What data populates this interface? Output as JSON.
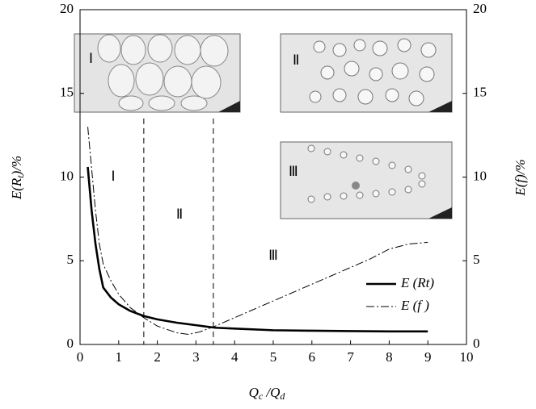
{
  "chart_data": {
    "type": "line",
    "xlabel": [
      "Q",
      "c",
      " /Q",
      "d"
    ],
    "ylabel": [
      "E",
      "(R",
      "t",
      ")/%"
    ],
    "y2label": [
      "E",
      "(f",
      ")/%"
    ],
    "xlim": [
      0,
      10
    ],
    "xticks": [
      0,
      1,
      2,
      3,
      4,
      5,
      6,
      7,
      8,
      9,
      10
    ],
    "ylim": [
      0,
      20
    ],
    "yticks": [
      0,
      5,
      10,
      15,
      20
    ],
    "y2lim": [
      0,
      20
    ],
    "y2ticks": [
      0,
      5,
      10,
      15,
      20
    ],
    "series": [
      {
        "name": "E (Rt)",
        "color": "#000000",
        "x": [
          0.2,
          0.3,
          0.4,
          0.5,
          0.6,
          0.8,
          1.0,
          1.3,
          1.65,
          2.0,
          2.5,
          3.0,
          3.5,
          4.0,
          5.0,
          6.0,
          7.0,
          8.0,
          9.0
        ],
        "values": [
          10.6,
          8.0,
          6.0,
          4.5,
          3.4,
          2.8,
          2.4,
          2.0,
          1.7,
          1.5,
          1.3,
          1.15,
          1.0,
          0.95,
          0.85,
          0.82,
          0.8,
          0.78,
          0.78
        ]
      },
      {
        "name": "E (f )",
        "color": "#000000",
        "axis": "y2",
        "x": [
          0.2,
          0.3,
          0.4,
          0.5,
          0.6,
          0.8,
          1.0,
          1.3,
          1.65,
          2.0,
          2.5,
          2.8,
          3.1,
          3.5,
          4.0,
          5.0,
          6.0,
          7.0,
          7.5,
          8.0,
          8.5,
          9.0
        ],
        "values": [
          13.0,
          10.5,
          8.0,
          6.0,
          4.8,
          3.8,
          3.0,
          2.2,
          1.6,
          1.1,
          0.7,
          0.6,
          0.75,
          1.1,
          1.6,
          2.6,
          3.6,
          4.6,
          5.1,
          5.7,
          6.0,
          6.1
        ]
      }
    ],
    "boundaries": [
      1.65,
      3.45
    ],
    "region_labels": [
      "Ⅰ",
      "Ⅱ",
      "Ⅲ"
    ],
    "inset_labels": [
      "Ⅰ",
      "Ⅱ",
      "Ⅲ"
    ]
  }
}
